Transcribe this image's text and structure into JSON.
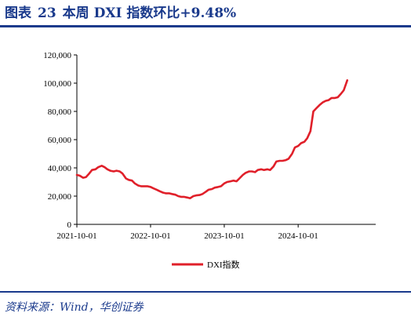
{
  "header": {
    "figure_label": "图表",
    "figure_number": "23",
    "title": "本周 DXI 指数环比+9.48%"
  },
  "footer": {
    "source": "资料来源：Wind，华创证券"
  },
  "colors": {
    "series": "#e0202a",
    "brand": "#1a3a8c",
    "axis": "#000000"
  },
  "chart_data": {
    "type": "line",
    "title": "",
    "xlabel": "",
    "ylabel": "",
    "ylim": [
      0,
      120000
    ],
    "yticks": [
      0,
      20000,
      40000,
      60000,
      80000,
      100000,
      120000
    ],
    "ytick_labels": [
      "0",
      "20,000",
      "40,000",
      "60,000",
      "80,000",
      "100,000",
      "120,000"
    ],
    "xlim": [
      "2021-10-01",
      "2025-10-20"
    ],
    "xticks": [
      "2021-10-01",
      "2022-10-01",
      "2023-10-01",
      "2024-10-01"
    ],
    "xtick_labels": [
      "2021-10-01",
      "2022-10-01",
      "2023-10-01",
      "2024-10-01"
    ],
    "legend": {
      "position": "bottom-center"
    },
    "grid": false,
    "series": [
      {
        "name": "DXI指数",
        "color": "#e0202a",
        "points": [
          [
            "2021-10-01",
            35000
          ],
          [
            "2021-10-15",
            34500
          ],
          [
            "2021-11-01",
            33000
          ],
          [
            "2021-11-15",
            33500
          ],
          [
            "2021-12-01",
            36000
          ],
          [
            "2021-12-15",
            38500
          ],
          [
            "2022-01-01",
            39000
          ],
          [
            "2022-01-15",
            40500
          ],
          [
            "2022-02-01",
            41500
          ],
          [
            "2022-02-15",
            40500
          ],
          [
            "2022-03-01",
            39000
          ],
          [
            "2022-03-15",
            38000
          ],
          [
            "2022-04-01",
            37500
          ],
          [
            "2022-04-15",
            38000
          ],
          [
            "2022-05-01",
            37500
          ],
          [
            "2022-05-15",
            36000
          ],
          [
            "2022-06-01",
            32500
          ],
          [
            "2022-06-15",
            31500
          ],
          [
            "2022-07-01",
            31000
          ],
          [
            "2022-07-15",
            29000
          ],
          [
            "2022-08-01",
            27500
          ],
          [
            "2022-08-15",
            27000
          ],
          [
            "2022-09-01",
            27000
          ],
          [
            "2022-09-15",
            27000
          ],
          [
            "2022-10-01",
            26500
          ],
          [
            "2022-10-15",
            25500
          ],
          [
            "2022-11-01",
            24500
          ],
          [
            "2022-11-15",
            23500
          ],
          [
            "2022-12-01",
            22500
          ],
          [
            "2022-12-15",
            22000
          ],
          [
            "2023-01-01",
            22000
          ],
          [
            "2023-01-15",
            21500
          ],
          [
            "2023-02-01",
            21000
          ],
          [
            "2023-02-15",
            20000
          ],
          [
            "2023-03-01",
            19500
          ],
          [
            "2023-03-15",
            19500
          ],
          [
            "2023-04-01",
            19000
          ],
          [
            "2023-04-15",
            18500
          ],
          [
            "2023-05-01",
            20000
          ],
          [
            "2023-05-15",
            20500
          ],
          [
            "2023-06-01",
            20800
          ],
          [
            "2023-06-15",
            21500
          ],
          [
            "2023-07-01",
            23000
          ],
          [
            "2023-07-15",
            24500
          ],
          [
            "2023-08-01",
            25000
          ],
          [
            "2023-08-15",
            26000
          ],
          [
            "2023-09-01",
            26500
          ],
          [
            "2023-09-15",
            27000
          ],
          [
            "2023-10-01",
            29000
          ],
          [
            "2023-10-15",
            30000
          ],
          [
            "2023-11-01",
            30500
          ],
          [
            "2023-11-15",
            31000
          ],
          [
            "2023-12-01",
            30500
          ],
          [
            "2023-12-15",
            32500
          ],
          [
            "2024-01-01",
            35000
          ],
          [
            "2024-01-15",
            36500
          ],
          [
            "2024-02-01",
            37500
          ],
          [
            "2024-02-15",
            37500
          ],
          [
            "2024-03-01",
            37000
          ],
          [
            "2024-03-15",
            38500
          ],
          [
            "2024-04-01",
            39000
          ],
          [
            "2024-04-15",
            38500
          ],
          [
            "2024-05-01",
            39000
          ],
          [
            "2024-05-15",
            38500
          ],
          [
            "2024-06-01",
            41000
          ],
          [
            "2024-06-15",
            44500
          ],
          [
            "2024-07-01",
            45000
          ],
          [
            "2024-07-15",
            45000
          ],
          [
            "2024-08-01",
            45500
          ],
          [
            "2024-08-15",
            46500
          ],
          [
            "2024-09-01",
            50000
          ],
          [
            "2024-09-15",
            54500
          ],
          [
            "2024-10-01",
            55500
          ],
          [
            "2024-10-15",
            57500
          ],
          [
            "2024-11-01",
            58500
          ],
          [
            "2024-11-15",
            61000
          ],
          [
            "2024-12-01",
            66000
          ],
          [
            "2024-12-15",
            80000
          ],
          [
            "2025-01-01",
            82500
          ],
          [
            "2025-01-15",
            84500
          ],
          [
            "2025-02-01",
            86500
          ],
          [
            "2025-02-15",
            87500
          ],
          [
            "2025-03-01",
            88000
          ],
          [
            "2025-03-15",
            89500
          ],
          [
            "2025-04-01",
            89500
          ],
          [
            "2025-04-15",
            90000
          ],
          [
            "2025-05-01",
            92500
          ],
          [
            "2025-05-15",
            95000
          ],
          [
            "2025-06-01",
            102000
          ]
        ]
      }
    ]
  }
}
